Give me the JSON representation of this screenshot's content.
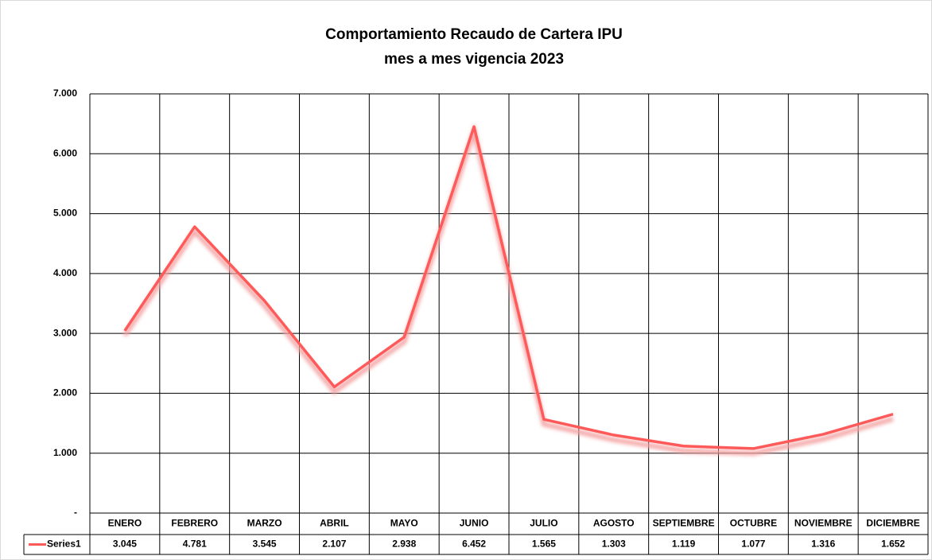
{
  "chart_data": {
    "type": "line",
    "title": "Comportamiento Recaudo de Cartera IPU",
    "subtitle": "mes a mes vigencia 2023",
    "categories": [
      "ENERO",
      "FEBRERO",
      "MARZO",
      "ABRIL",
      "MAYO",
      "JUNIO",
      "JULIO",
      "AGOSTO",
      "SEPTIEMBRE",
      "OCTUBRE",
      "NOVIEMBRE",
      "DICIEMBRE"
    ],
    "series": [
      {
        "name": "Series1",
        "color": "#ff5a5a",
        "values": [
          3045,
          4781,
          3545,
          2107,
          2938,
          6452,
          1565,
          1303,
          1119,
          1077,
          1316,
          1652
        ],
        "value_labels": [
          "3.045",
          "4.781",
          "3.545",
          "2.107",
          "2.938",
          "6.452",
          "1.565",
          "1.303",
          "1.119",
          "1.077",
          "1.316",
          "1.652"
        ]
      }
    ],
    "ylim": [
      0,
      7000
    ],
    "yticks": [
      {
        "value": 0,
        "label": "-"
      },
      {
        "value": 1000,
        "label": "1.000"
      },
      {
        "value": 2000,
        "label": "2.000"
      },
      {
        "value": 3000,
        "label": "3.000"
      },
      {
        "value": 4000,
        "label": "4.000"
      },
      {
        "value": 5000,
        "label": "5.000"
      },
      {
        "value": 6000,
        "label": "6.000"
      },
      {
        "value": 7000,
        "label": "7.000"
      }
    ],
    "grid": true,
    "data_table": true
  }
}
